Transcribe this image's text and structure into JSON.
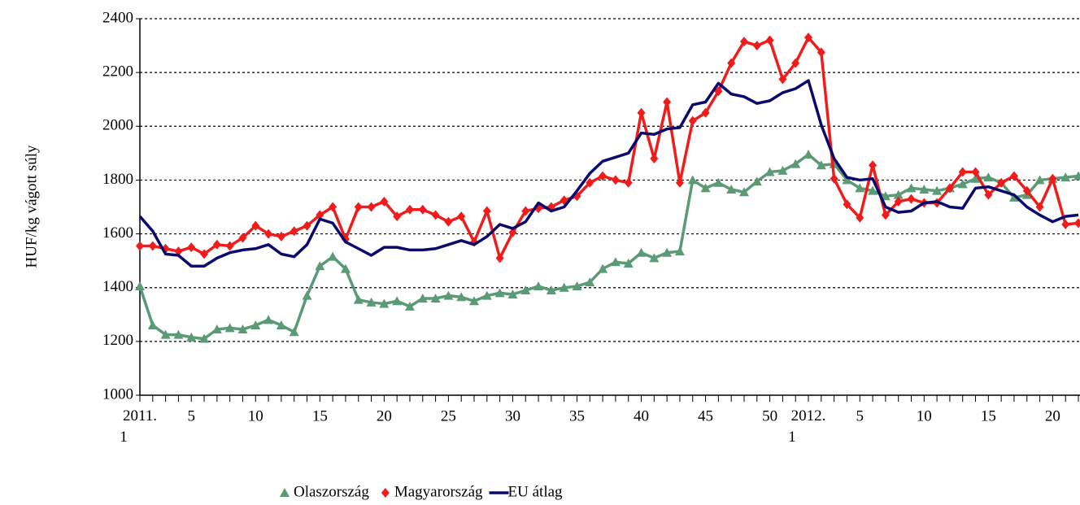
{
  "chart_data": {
    "type": "line",
    "y_label": "HUF/kg vágott súly",
    "categories": [
      "2011. 1",
      null,
      null,
      null,
      "5",
      null,
      null,
      null,
      null,
      "10",
      null,
      null,
      null,
      null,
      "15",
      null,
      null,
      null,
      null,
      "20",
      null,
      null,
      null,
      null,
      "25",
      null,
      null,
      null,
      null,
      "30",
      null,
      null,
      null,
      null,
      "35",
      null,
      null,
      null,
      null,
      "40",
      null,
      null,
      null,
      null,
      "45",
      null,
      null,
      null,
      null,
      "50",
      null,
      null,
      "2012. 1",
      null,
      null,
      null,
      "5",
      null,
      null,
      null,
      null,
      "10",
      null,
      null,
      null,
      null,
      "15",
      null,
      null,
      null,
      null,
      "20",
      null,
      null
    ],
    "ylim": [
      1000,
      2400
    ],
    "yticks": [
      1000,
      1200,
      1400,
      1600,
      1800,
      2000,
      2200,
      2400
    ],
    "grid": true,
    "legend": "bottom",
    "series": [
      {
        "name": "Olaszország",
        "color": "#5a9a74",
        "marker": "triangle",
        "values": [
          1405,
          1260,
          1225,
          1225,
          1215,
          1210,
          1245,
          1250,
          1245,
          1260,
          1280,
          1260,
          1235,
          1370,
          1480,
          1515,
          1470,
          1355,
          1345,
          1340,
          1350,
          1330,
          1360,
          1360,
          1370,
          1365,
          1350,
          1370,
          1380,
          1375,
          1390,
          1405,
          1390,
          1400,
          1405,
          1420,
          1470,
          1495,
          1490,
          1530,
          1510,
          1530,
          1535,
          1800,
          1770,
          1790,
          1765,
          1755,
          1795,
          1830,
          1835,
          1860,
          1895,
          1855,
          1860,
          1800,
          1770,
          1760,
          1740,
          1745,
          1770,
          1765,
          1760,
          1770,
          1785,
          1805,
          1810,
          1790,
          1735,
          1745,
          1800,
          1805,
          1810,
          1815
        ]
      },
      {
        "name": "Magyarország",
        "color": "#f01c1c",
        "marker": "diamond",
        "values": [
          1555,
          1555,
          1545,
          1535,
          1550,
          1525,
          1560,
          1555,
          1585,
          1630,
          1600,
          1590,
          1610,
          1630,
          1670,
          1700,
          1580,
          1700,
          1700,
          1720,
          1665,
          1690,
          1690,
          1670,
          1645,
          1665,
          1570,
          1685,
          1510,
          1605,
          1685,
          1695,
          1700,
          1725,
          1740,
          1790,
          1815,
          1800,
          1790,
          2050,
          1880,
          2090,
          1790,
          2020,
          2050,
          2130,
          2235,
          2315,
          2300,
          2320,
          2175,
          2235,
          2330,
          2275,
          1805,
          1710,
          1660,
          1855,
          1670,
          1720,
          1730,
          1715,
          1715,
          1770,
          1830,
          1830,
          1745,
          1790,
          1815,
          1760,
          1700,
          1805,
          1635,
          1640
        ]
      },
      {
        "name": "EU átlag",
        "color": "#0a0a6e",
        "marker": "none",
        "values": [
          1665,
          1610,
          1525,
          1520,
          1480,
          1480,
          1510,
          1530,
          1540,
          1545,
          1560,
          1525,
          1515,
          1560,
          1655,
          1640,
          1570,
          1545,
          1520,
          1550,
          1550,
          1540,
          1540,
          1545,
          1560,
          1575,
          1560,
          1590,
          1635,
          1620,
          1645,
          1715,
          1685,
          1700,
          1760,
          1825,
          1870,
          1885,
          1900,
          1975,
          1970,
          1990,
          1995,
          2080,
          2090,
          2160,
          2120,
          2110,
          2085,
          2095,
          2125,
          2140,
          2170,
          2005,
          1880,
          1810,
          1800,
          1805,
          1700,
          1680,
          1685,
          1715,
          1720,
          1700,
          1695,
          1770,
          1775,
          1760,
          1745,
          1700,
          1670,
          1645,
          1665,
          1670
        ]
      }
    ]
  }
}
